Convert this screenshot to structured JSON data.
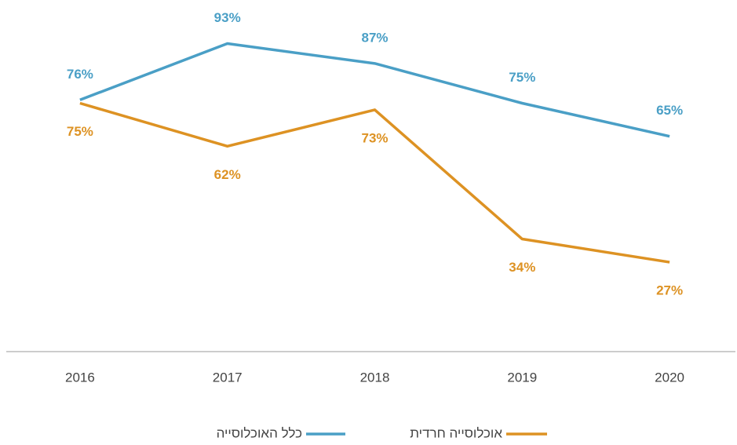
{
  "chart_data": {
    "type": "line",
    "categories": [
      "2016",
      "2017",
      "2018",
      "2019",
      "2020"
    ],
    "series": [
      {
        "name": "כלל האוכלוסייה",
        "color": "#4a9fc6",
        "values": [
          76,
          93,
          87,
          75,
          65
        ],
        "value_labels": [
          "76%",
          "93%",
          "87%",
          "75%",
          "65%"
        ]
      },
      {
        "name": "אוכלוסייה חרדית",
        "color": "#dd9223",
        "values": [
          75,
          62,
          73,
          34,
          27
        ],
        "value_labels": [
          "75%",
          "62%",
          "73%",
          "34%",
          "27%"
        ]
      }
    ],
    "ylim": [
      0,
      100
    ]
  }
}
